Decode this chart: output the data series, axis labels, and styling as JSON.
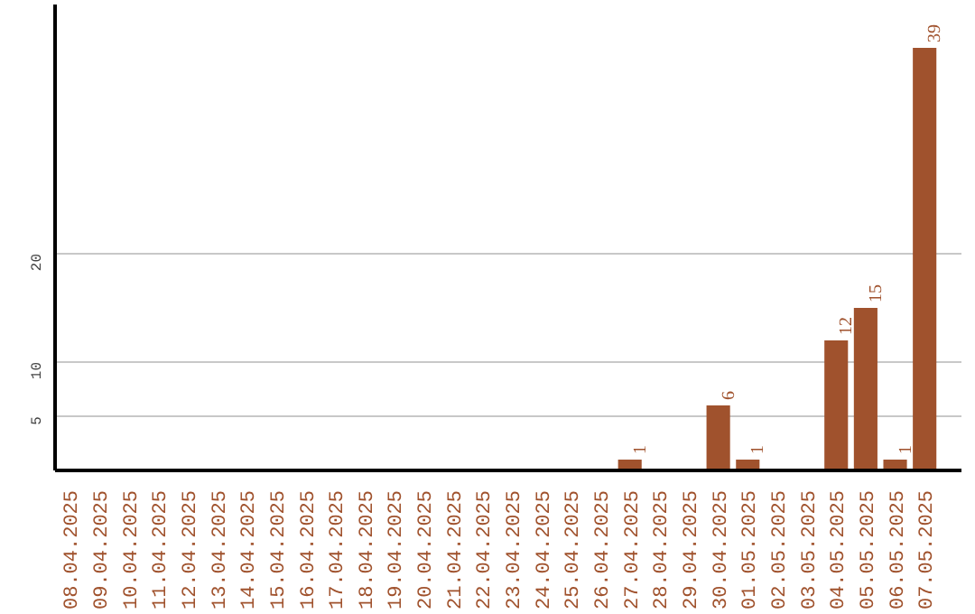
{
  "chart_data": {
    "type": "bar",
    "categories": [
      "08.04.2025",
      "09.04.2025",
      "10.04.2025",
      "11.04.2025",
      "12.04.2025",
      "13.04.2025",
      "14.04.2025",
      "15.04.2025",
      "16.04.2025",
      "17.04.2025",
      "18.04.2025",
      "19.04.2025",
      "20.04.2025",
      "21.04.2025",
      "22.04.2025",
      "23.04.2025",
      "24.04.2025",
      "25.04.2025",
      "26.04.2025",
      "27.04.2025",
      "28.04.2025",
      "29.04.2025",
      "30.04.2025",
      "01.05.2025",
      "02.05.2025",
      "03.05.2025",
      "04.05.2025",
      "05.05.2025",
      "06.05.2025",
      "07.05.2025"
    ],
    "values": [
      0,
      0,
      0,
      0,
      0,
      0,
      0,
      0,
      0,
      0,
      0,
      0,
      0,
      0,
      0,
      0,
      0,
      0,
      0,
      1,
      0,
      0,
      6,
      1,
      0,
      0,
      12,
      15,
      1,
      39
    ],
    "value_labels": [
      null,
      null,
      null,
      null,
      null,
      null,
      null,
      null,
      null,
      null,
      null,
      null,
      null,
      null,
      null,
      null,
      null,
      null,
      null,
      "1",
      null,
      null,
      "6",
      "1",
      null,
      null,
      "12",
      "15",
      "1",
      "39"
    ],
    "color": "#a0522d",
    "ylim": [
      0,
      43
    ],
    "yticks": [
      5,
      10,
      20
    ],
    "grid": "y"
  }
}
